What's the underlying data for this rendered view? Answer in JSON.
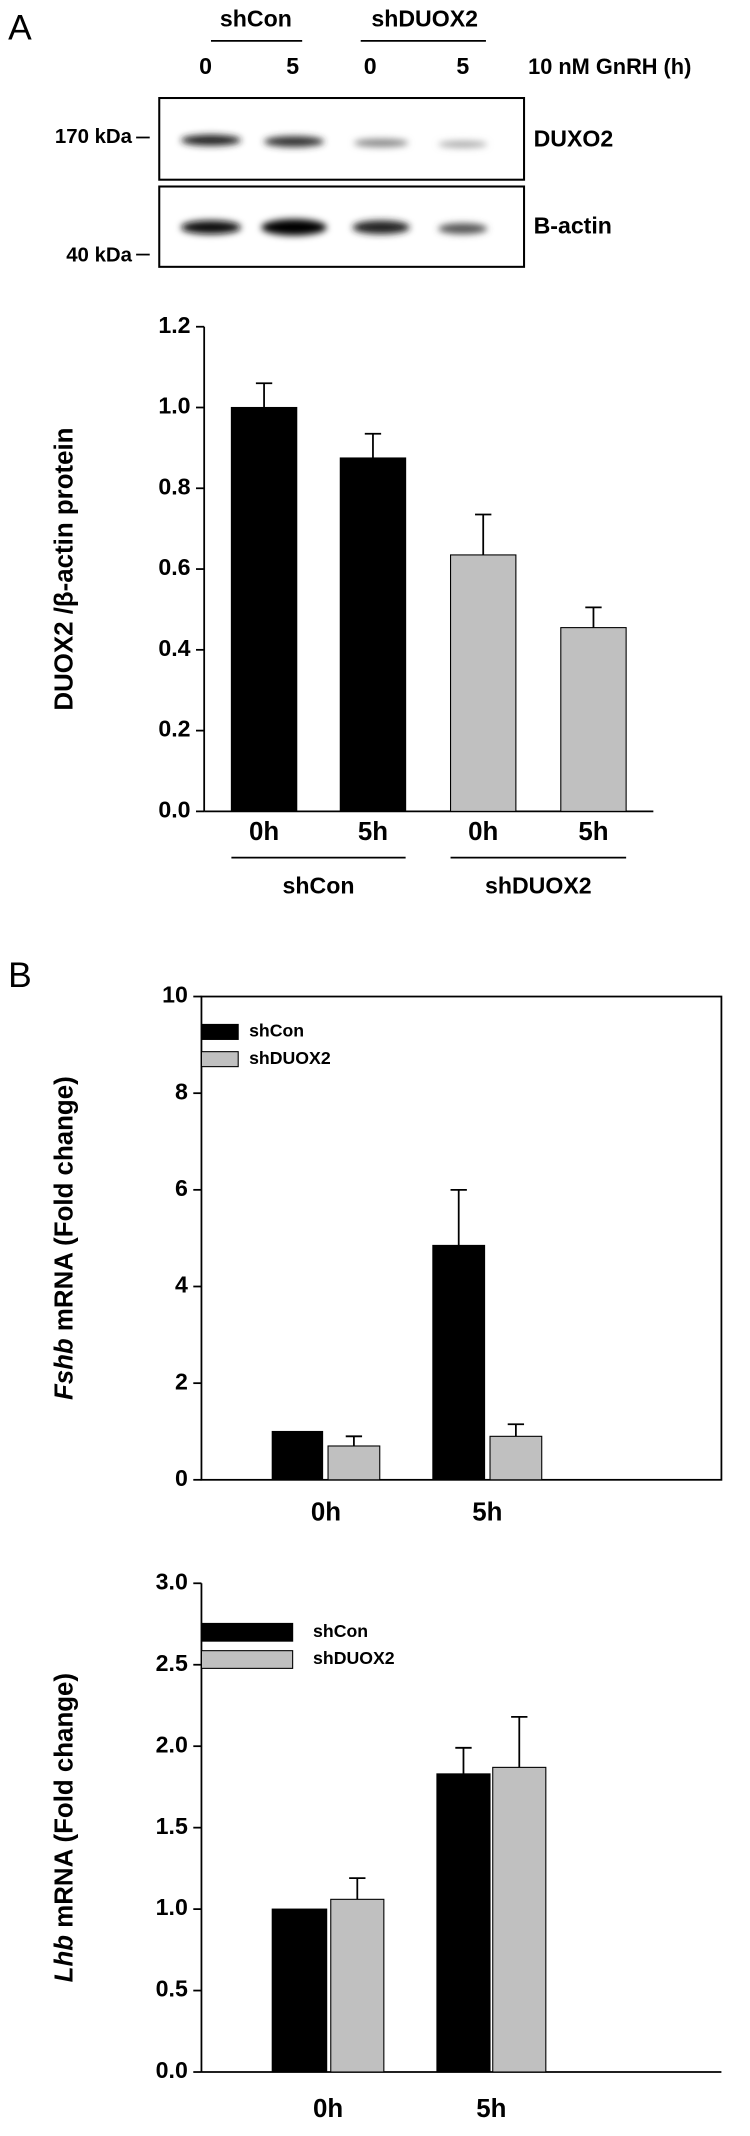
{
  "panel_labels": [
    "A",
    "B"
  ],
  "blot": {
    "groups": [
      "shCon",
      "shDUOX2"
    ],
    "lanes": [
      "0",
      "5",
      "0",
      "5"
    ],
    "treatment": "10 nM GnRH (h)",
    "markers": [
      "170 kDa",
      "40 kDa"
    ],
    "rows": [
      "DUXO2",
      "B-actin"
    ]
  },
  "chart_data": [
    {
      "type": "bar",
      "ylabel": "DUOX2 /β-actin protein",
      "categories": [
        "0h",
        "5h",
        "0h",
        "5h"
      ],
      "group_labels": [
        "shCon",
        "shDUOX2"
      ],
      "values": [
        1.0,
        0.875,
        0.635,
        0.455
      ],
      "errors": [
        0.06,
        0.06,
        0.1,
        0.05
      ],
      "colors": [
        "#000000",
        "#000000",
        "#c0c0c0",
        "#c0c0c0"
      ],
      "ylim": [
        0,
        1.2
      ],
      "yticks": [
        {
          "value": 0,
          "label": "0.0"
        },
        {
          "value": 0.2,
          "label": "0.2"
        },
        {
          "value": 0.4,
          "label": "0.4"
        },
        {
          "value": 0.6,
          "label": "0.6"
        },
        {
          "value": 0.8,
          "label": "0.8"
        },
        {
          "value": 1.0,
          "label": "1.0"
        },
        {
          "value": 1.2,
          "label": "1.2"
        }
      ],
      "frame": "axes"
    },
    {
      "type": "grouped_bar",
      "ylabel_italic": "Fshb",
      "ylabel": "mRNA (Fold change)",
      "categories": [
        "0h",
        "5h"
      ],
      "series": [
        {
          "name": "shCon",
          "color": "#000000",
          "values": [
            1.0,
            4.85
          ],
          "errors": [
            null,
            1.15
          ]
        },
        {
          "name": "shDUOX2",
          "color": "#c0c0c0",
          "values": [
            0.7,
            0.9
          ],
          "errors": [
            0.2,
            0.25
          ]
        }
      ],
      "ylim": [
        0,
        10
      ],
      "yticks": [
        0,
        2,
        4,
        6,
        8,
        10
      ],
      "legend": "upper left",
      "frame": "box"
    },
    {
      "type": "grouped_bar",
      "ylabel_italic": "Lhb",
      "ylabel": "mRNA (Fold change)",
      "categories": [
        "0h",
        "5h"
      ],
      "series": [
        {
          "name": "shCon",
          "color": "#000000",
          "values": [
            1.0,
            1.83
          ],
          "errors": [
            null,
            0.16
          ]
        },
        {
          "name": "shDUOX2",
          "color": "#c0c0c0",
          "values": [
            1.06,
            1.87
          ],
          "errors": [
            0.13,
            0.31
          ]
        }
      ],
      "ylim": [
        0,
        3
      ],
      "yticks": [
        {
          "value": 0,
          "label": "0.0"
        },
        {
          "value": 0.5,
          "label": "0.5"
        },
        {
          "value": 1.0,
          "label": "1.0"
        },
        {
          "value": 1.5,
          "label": "1.5"
        },
        {
          "value": 2.0,
          "label": "2.0"
        },
        {
          "value": 2.5,
          "label": "2.5"
        },
        {
          "value": 3.0,
          "label": "3.0"
        }
      ],
      "legend": "upper left",
      "frame": "axes"
    }
  ]
}
